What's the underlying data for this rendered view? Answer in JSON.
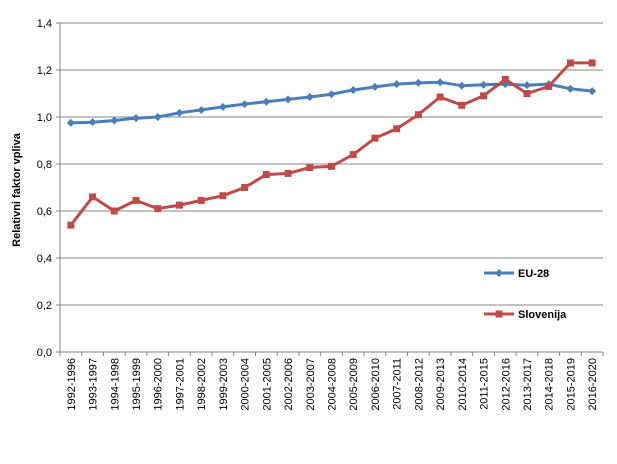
{
  "chart_data": {
    "type": "line",
    "ylabel": "Relativni faktor vpliva",
    "xlabel": "",
    "ylim": [
      0,
      1.4
    ],
    "ytick_step": 0.2,
    "grid": "horizontal",
    "legend_position": "right",
    "categories": [
      "1992-1996",
      "1993-1997",
      "1994-1998",
      "1995-1999",
      "1996-2000",
      "1997-2001",
      "1998-2002",
      "1999-2003",
      "2000-2004",
      "2001-2005",
      "2002-2006",
      "2003-2007",
      "2004-2008",
      "2005-2009",
      "2006-2010",
      "2007-2011",
      "2008-2012",
      "2009-2013",
      "2010-2014",
      "2011-2015",
      "2012-2016",
      "2013-2017",
      "2014-2018",
      "2015-2019",
      "2016-2020"
    ],
    "series": [
      {
        "name": "EU-28",
        "color": "#4a7ebb",
        "marker": "diamond",
        "values": [
          0.975,
          0.978,
          0.985,
          0.995,
          1.0,
          1.018,
          1.03,
          1.043,
          1.055,
          1.065,
          1.075,
          1.085,
          1.097,
          1.115,
          1.128,
          1.14,
          1.145,
          1.148,
          1.133,
          1.137,
          1.14,
          1.135,
          1.14,
          1.12,
          1.11
        ]
      },
      {
        "name": "Slovenija",
        "color": "#be4b48",
        "marker": "square",
        "values": [
          0.54,
          0.66,
          0.6,
          0.645,
          0.61,
          0.625,
          0.645,
          0.665,
          0.7,
          0.755,
          0.76,
          0.785,
          0.79,
          0.84,
          0.91,
          0.95,
          1.01,
          1.085,
          1.05,
          1.09,
          1.16,
          1.1,
          1.13,
          1.23,
          1.23
        ]
      }
    ]
  }
}
